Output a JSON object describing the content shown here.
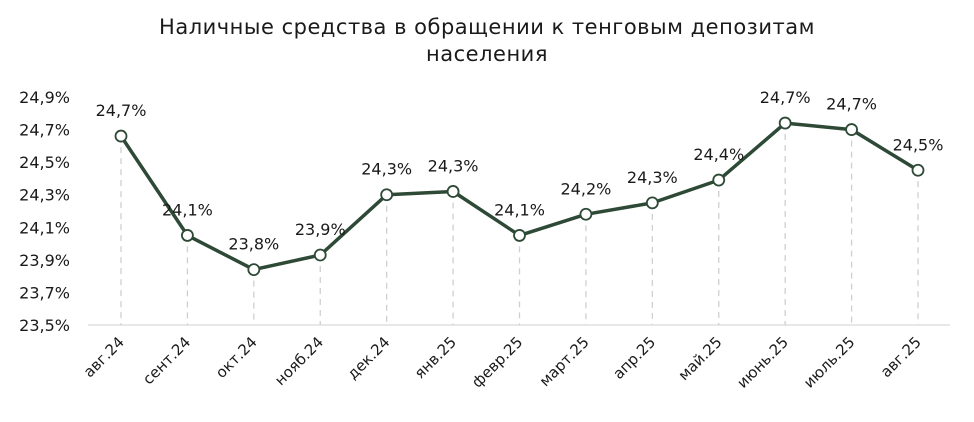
{
  "chart_data": {
    "type": "line",
    "title_lines": [
      "Наличные средства в обращении к тенговым депозитам",
      "населения"
    ],
    "xlabel": "",
    "ylabel": "",
    "categories": [
      "авг.24",
      "сент.24",
      "окт.24",
      "нояб.24",
      "дек.24",
      "янв.25",
      "февр.25",
      "март.25",
      "апр.25",
      "май.25",
      "июнь.25",
      "июль.25",
      "авг.25"
    ],
    "values": [
      24.66,
      24.05,
      23.84,
      23.93,
      24.3,
      24.32,
      24.05,
      24.18,
      24.25,
      24.39,
      24.74,
      24.7,
      24.45
    ],
    "data_labels": [
      "24,7%",
      "24,1%",
      "23,8%",
      "23,9%",
      "24,3%",
      "24,3%",
      "24,1%",
      "24,2%",
      "24,3%",
      "24,4%",
      "24,7%",
      "24,7%",
      "24,5%"
    ],
    "yticks": [
      23.5,
      23.7,
      23.9,
      24.1,
      24.3,
      24.5,
      24.7,
      24.9
    ],
    "ytick_labels": [
      "23,5%",
      "23,7%",
      "23,9%",
      "24,1%",
      "24,3%",
      "24,5%",
      "24,7%",
      "24,9%"
    ],
    "ylim": [
      23.5,
      24.9
    ],
    "grid": false,
    "legend": "none",
    "line_color": "#2e4a37",
    "marker_fill": "#ffffff",
    "drop_line_color": "#cfcfcf"
  }
}
